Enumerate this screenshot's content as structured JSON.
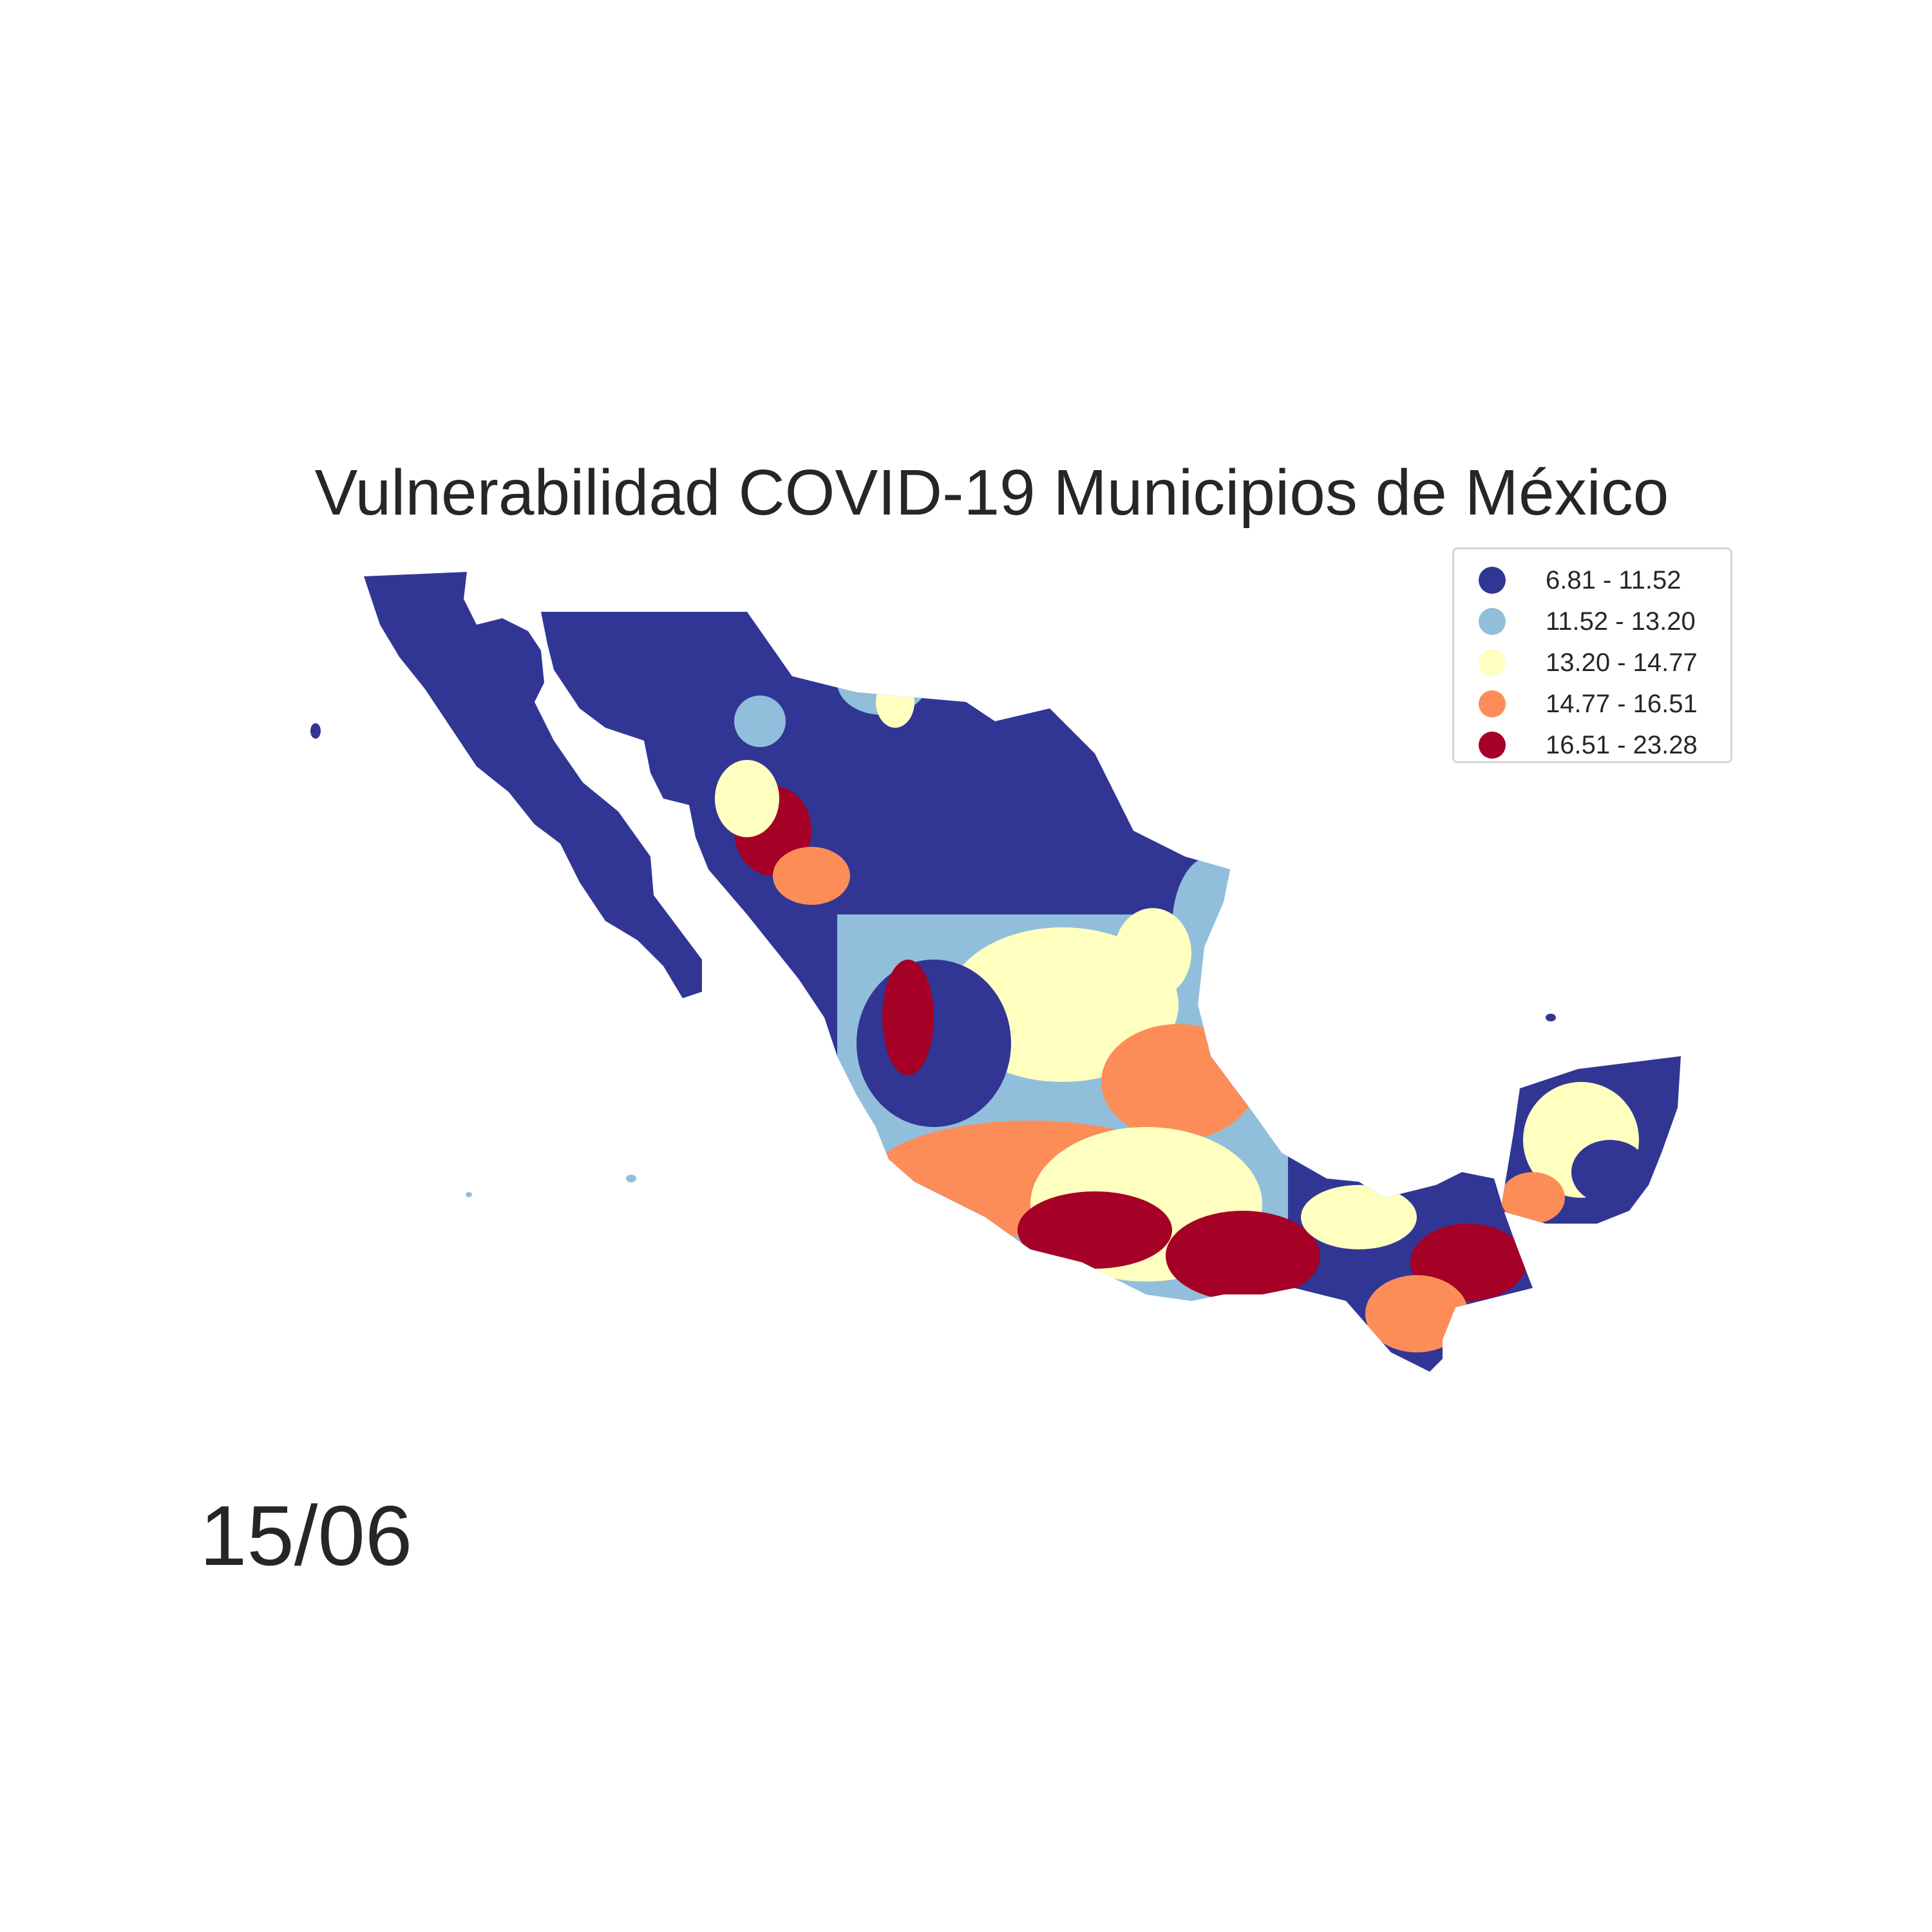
{
  "title": "Vulnerabilidad COVID-19 Municipios de México",
  "date": "15/06",
  "legend": {
    "items": [
      {
        "label": "6.81 - 11.52",
        "color": "#313695"
      },
      {
        "label": "11.52 - 13.20",
        "color": "#91bfdb"
      },
      {
        "label": "13.20 - 14.77",
        "color": "#ffffbf"
      },
      {
        "label": "14.77 - 16.51",
        "color": "#fc8d59"
      },
      {
        "label": "16.51 - 23.28",
        "color": "#a50026"
      }
    ]
  },
  "map": {
    "region": "México",
    "colors": {
      "class_1": "#313695",
      "class_2": "#91bfdb",
      "class_3": "#ffffbf",
      "class_4": "#fc8d59",
      "class_5": "#a50026"
    }
  }
}
